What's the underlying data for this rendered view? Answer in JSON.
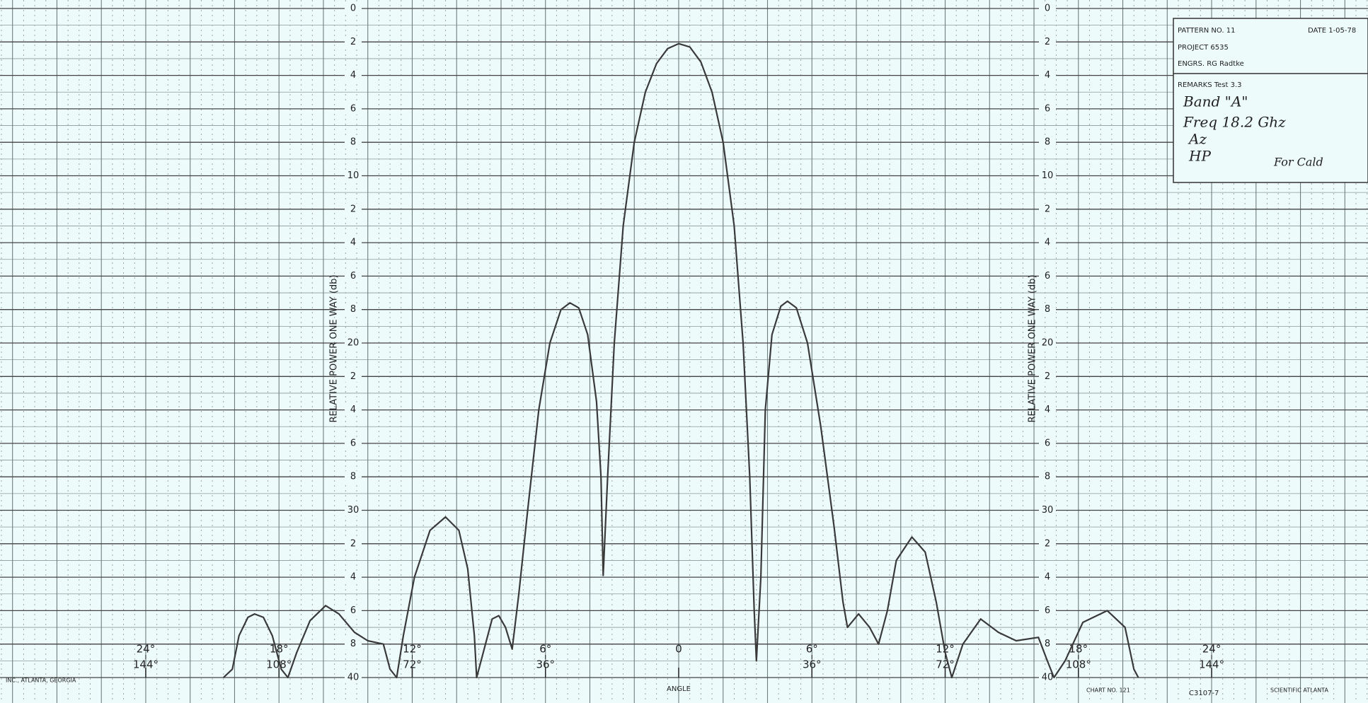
{
  "chart_data": {
    "type": "line",
    "y_label": "RELATIVE POWER ONE WAY (db)",
    "x_label": "ANGLE",
    "xlim": [
      -30.5,
      30.5
    ],
    "ylim": [
      0,
      40
    ],
    "y_inverted": true,
    "yticks": [
      0,
      2,
      4,
      6,
      8,
      10,
      {
        "value": 12,
        "label": "2"
      },
      {
        "value": 14,
        "label": "4"
      },
      {
        "value": 16,
        "label": "6"
      },
      {
        "value": 18,
        "label": "8"
      },
      20,
      {
        "value": 22,
        "label": "2"
      },
      {
        "value": 24,
        "label": "4"
      },
      {
        "value": 26,
        "label": "6"
      },
      {
        "value": 28,
        "label": "8"
      },
      30,
      {
        "value": 32,
        "label": "2"
      },
      {
        "value": 34,
        "label": "4"
      },
      {
        "value": 36,
        "label": "6"
      },
      {
        "value": 38,
        "label": "8"
      },
      40
    ],
    "xticks": [
      {
        "value": -24,
        "label": "24°"
      },
      {
        "value": -18,
        "label": "18°"
      },
      {
        "value": -12,
        "label": "12°"
      },
      {
        "value": -6,
        "label": "6°"
      },
      0,
      {
        "value": 6,
        "label": "6°"
      },
      {
        "value": 12,
        "label": "12°"
      },
      {
        "value": 18,
        "label": "18°"
      },
      {
        "value": 24,
        "label": "24°"
      }
    ],
    "xticks_secondary": [
      {
        "value": -24,
        "label": "144°"
      },
      {
        "value": -18,
        "label": "108°"
      },
      {
        "value": -12,
        "label": "72°"
      },
      {
        "value": -6,
        "label": "36°"
      },
      {
        "value": 6,
        "label": "36°"
      },
      {
        "value": 12,
        "label": "72°"
      },
      {
        "value": 18,
        "label": "108°"
      },
      {
        "value": 24,
        "label": "144°"
      }
    ],
    "grid": true,
    "series": [
      {
        "color": "#3a3a3a",
        "x": [
          -20.5,
          -20.1,
          -19.8,
          -19.4,
          -19.1,
          -18.7,
          -18.3,
          -17.9,
          -17.6,
          -17.2,
          -16.6,
          -15.9,
          -15.3,
          -14.6,
          -14,
          -13.3,
          -13,
          -12.7,
          -12.4,
          -11.9,
          -11.2,
          -10.5,
          -9.9,
          -9.5,
          -9.2,
          -9.1,
          -8.7,
          -8.4,
          -8.1,
          -7.8,
          -7.5,
          -7.2,
          -6.8,
          -6.3,
          -5.8,
          -5.3,
          -4.9,
          -4.5,
          -4.1,
          -3.7,
          -3.5,
          -3.4,
          -3.2,
          -2.9,
          -2.5,
          -2,
          -1.5,
          -1,
          -0.5,
          0,
          0.5,
          1,
          1.5,
          2,
          2.5,
          2.9,
          3.2,
          3.4,
          3.5,
          3.7,
          3.9,
          4.2,
          4.6,
          4.9,
          5.3,
          5.8,
          6.4,
          7,
          7.4,
          7.6,
          8.1,
          8.6,
          9,
          9.4,
          9.8,
          10.5,
          11.1,
          11.6,
          12,
          12.3,
          12.8,
          13.6,
          14.4,
          15.2,
          16.2,
          16.6,
          16.9,
          17.4,
          18.2,
          19.3,
          20.1,
          20.5,
          20.7
        ],
        "values": [
          40,
          39.5,
          37.5,
          36.4,
          36.2,
          36.4,
          37.5,
          39.5,
          40,
          38.5,
          36.6,
          35.7,
          36.2,
          37.3,
          37.8,
          38,
          39.5,
          40,
          37.5,
          34,
          31.2,
          30.4,
          31.2,
          33.5,
          37.5,
          40,
          38,
          36.5,
          36.3,
          37,
          38.3,
          35,
          30,
          24,
          20,
          18,
          17.6,
          17.9,
          19.5,
          23.5,
          28,
          33.9,
          28,
          20,
          13,
          8,
          5,
          3.3,
          2.4,
          2.1,
          2.3,
          3.2,
          5,
          8,
          13,
          20,
          28,
          36,
          39,
          34,
          24,
          19.5,
          17.8,
          17.5,
          17.9,
          20,
          25,
          31,
          35.5,
          37,
          36.2,
          37,
          38,
          36,
          33,
          31.6,
          32.5,
          35.5,
          38.5,
          40,
          38,
          36.5,
          37.3,
          37.8,
          37.6,
          39,
          40,
          39,
          36.7,
          36,
          37,
          39.5,
          40
        ]
      }
    ]
  },
  "title_block": {
    "pattern": "PATTERN NO. 11",
    "date": "DATE 1-05-78",
    "project": "PROJECT 6535",
    "engrs": "ENGRS. RG Radtke",
    "remarks": "REMARKS Test 3.3",
    "notes": [
      "Band \"A\"",
      "Freq 18.2 Ghz",
      "Az",
      "HP"
    ],
    "signoff": "For Cald"
  },
  "footer": {
    "left": "INC., ATLANTA, GEORGIA",
    "chart_no": "CHART NO. 121",
    "right": "SCIENTIFIC ATLANTA",
    "code": "C3107-7"
  }
}
